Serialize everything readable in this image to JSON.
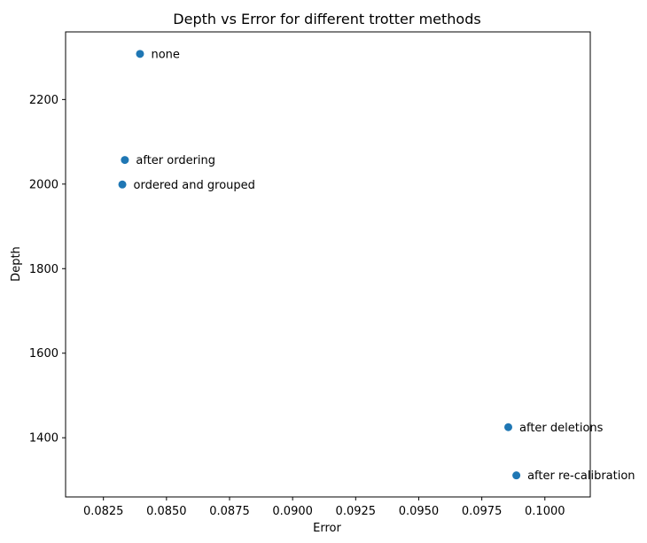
{
  "chart_data": {
    "type": "scatter",
    "title": "Depth vs Error for different trotter methods",
    "xlabel": "Error",
    "ylabel": "Depth",
    "xlim": [
      0.081,
      0.1018
    ],
    "ylim": [
      1260,
      2360
    ],
    "xticks": [
      0.0825,
      0.085,
      0.0875,
      0.09,
      0.0925,
      0.095,
      0.0975,
      0.1
    ],
    "xtick_labels": [
      "0.0825",
      "0.0850",
      "0.0875",
      "0.0900",
      "0.0925",
      "0.0950",
      "0.0975",
      "0.1000"
    ],
    "yticks": [
      1400,
      1600,
      1800,
      2000,
      2200
    ],
    "ytick_labels": [
      "1400",
      "1600",
      "1800",
      "2000",
      "2200"
    ],
    "grid": false,
    "marker_color": "#1f77b4",
    "points": [
      {
        "label": "none",
        "x": 0.08395,
        "y": 2308
      },
      {
        "label": "after ordering",
        "x": 0.08335,
        "y": 2057
      },
      {
        "label": "ordered and grouped",
        "x": 0.08325,
        "y": 1999
      },
      {
        "label": "after deletions",
        "x": 0.09855,
        "y": 1425
      },
      {
        "label": "after re-calibration",
        "x": 0.09887,
        "y": 1311
      }
    ]
  }
}
